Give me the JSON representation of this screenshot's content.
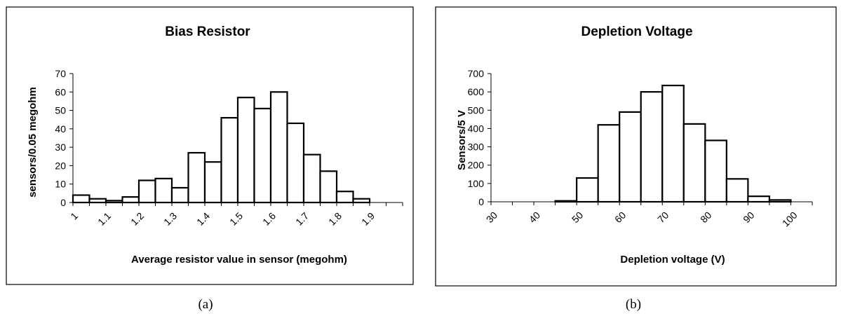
{
  "chart_data": [
    {
      "type": "bar",
      "title": "Bias Resistor",
      "xlabel": "Average resistor value in sensor (megohm)",
      "ylabel": "sensors/0.05 megohm",
      "y_ticks": [
        "0",
        "10",
        "20",
        "30",
        "40",
        "50",
        "60",
        "70"
      ],
      "ylim": [
        0,
        70
      ],
      "x_tick_labels": [
        "1",
        "1.1",
        "1.2",
        "1.3",
        "1.4",
        "1.5",
        "1.6",
        "1.7",
        "1.8",
        "1.9"
      ],
      "bin_width": 0.05,
      "x_start": 1.0,
      "values": [
        4,
        2,
        1,
        3,
        12,
        13,
        8,
        27,
        22,
        46,
        57,
        51,
        60,
        43,
        26,
        17,
        6,
        2,
        0,
        0
      ],
      "caption": "(a)"
    },
    {
      "type": "bar",
      "title": "Depletion Voltage",
      "xlabel": "Depletion voltage (V)",
      "ylabel": "Sensors/5 V",
      "y_ticks": [
        "0",
        "100",
        "200",
        "300",
        "400",
        "500",
        "600",
        "700"
      ],
      "ylim": [
        0,
        700
      ],
      "x_tick_labels": [
        "30",
        "40",
        "50",
        "60",
        "70",
        "80",
        "90",
        "100"
      ],
      "bin_width": 5,
      "x_start": 30,
      "values": [
        0,
        0,
        0,
        5,
        130,
        420,
        490,
        600,
        635,
        425,
        335,
        125,
        30,
        10
      ],
      "caption": "(b)"
    }
  ]
}
